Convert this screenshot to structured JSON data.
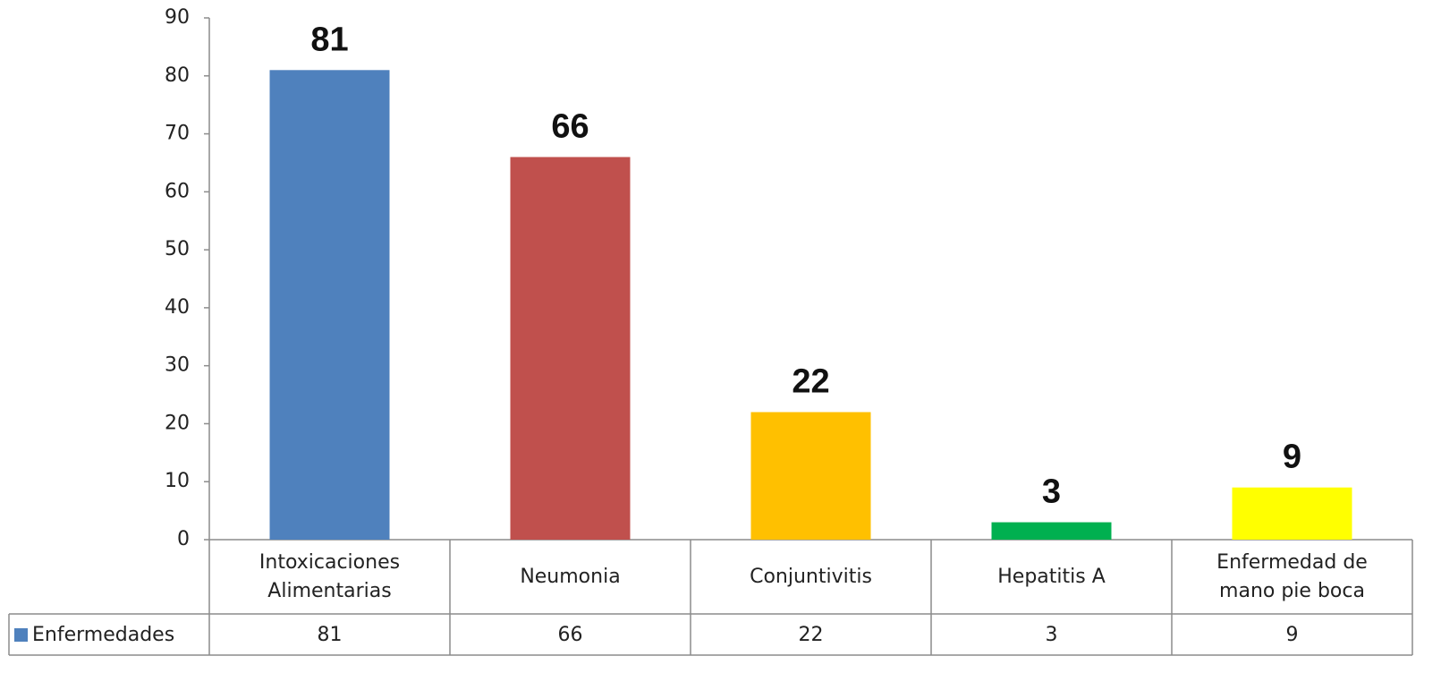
{
  "chart_data": {
    "type": "bar",
    "categories": [
      "Intoxicaciones Alimentarias",
      "Neumonia",
      "Conjuntivitis",
      "Hepatitis A",
      "Enfermedad de mano pie boca"
    ],
    "series": [
      {
        "name": "Enfermedades",
        "color": "#4f81bd",
        "point_colors": [
          "#4f81bd",
          "#c0504d",
          "#ffc000",
          "#00b050",
          "#ffff00"
        ],
        "values": [
          81,
          66,
          22,
          3,
          9
        ]
      }
    ],
    "ylim": [
      0,
      90
    ],
    "yticks": [
      0,
      10,
      20,
      30,
      40,
      50,
      60,
      70,
      80,
      90
    ],
    "grid": false,
    "data_table": true
  }
}
